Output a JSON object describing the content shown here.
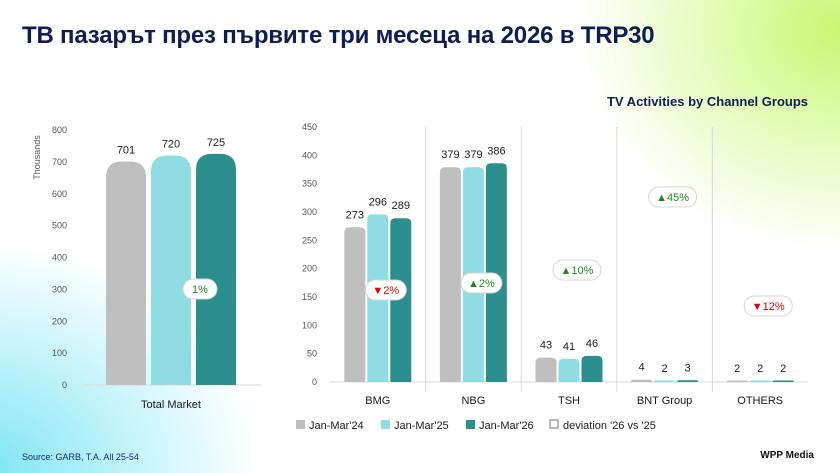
{
  "title": "ТВ пазарът през първите три месеца на 2026 в TRP30",
  "subtitle": "TV Activities by Channel Groups",
  "source": "Source: GARB, T.A. All 25-54",
  "brand": "WPP Media",
  "colors": {
    "jan_mar_24": "#bfbfbf",
    "jan_mar_25": "#8fdde3",
    "jan_mar_26": "#2a8f8d",
    "up": "#1b8a1b",
    "down": "#e00000",
    "neutral": "#1b8a1b",
    "grid": "#d9d9d9"
  },
  "chart_data": [
    {
      "type": "bar",
      "title": "",
      "ylabel": "Thousands",
      "ylim": [
        0,
        800
      ],
      "yticks": [
        "0",
        "100",
        "200",
        "300",
        "400",
        "500",
        "600",
        "700",
        "800"
      ],
      "categories": [
        "Total Market"
      ],
      "series": [
        {
          "name": "Jan-Mar'24",
          "values": [
            701
          ]
        },
        {
          "name": "Jan-Mar'25",
          "values": [
            720
          ]
        },
        {
          "name": "Jan-Mar'26",
          "values": [
            725
          ]
        }
      ],
      "deviations": [
        {
          "text": "1%",
          "direction": "neutral"
        }
      ]
    },
    {
      "type": "bar",
      "title": "TV Activities by Channel Groups",
      "ylabel": "",
      "ylim": [
        0,
        450
      ],
      "yticks": [
        "0",
        "50",
        "100",
        "150",
        "200",
        "250",
        "300",
        "350",
        "400",
        "450"
      ],
      "categories": [
        "BMG",
        "NBG",
        "TSH",
        "BNT Group",
        "OTHERS"
      ],
      "series": [
        {
          "name": "Jan-Mar'24",
          "values": [
            273,
            379,
            43,
            4,
            2
          ]
        },
        {
          "name": "Jan-Mar'25",
          "values": [
            296,
            379,
            41,
            2,
            2
          ]
        },
        {
          "name": "Jan-Mar'26",
          "values": [
            289,
            386,
            46,
            3,
            2
          ]
        }
      ],
      "deviations": [
        {
          "text": "▼2%",
          "direction": "down"
        },
        {
          "text": "▲2%",
          "direction": "up"
        },
        {
          "text": "▲10%",
          "direction": "up"
        },
        {
          "text": "▲45%",
          "direction": "up"
        },
        {
          "text": "▼12%",
          "direction": "down"
        }
      ]
    }
  ],
  "legend": [
    "Jan-Mar'24",
    "Jan-Mar'25",
    "Jan-Mar'26",
    "deviation '26 vs '25"
  ]
}
